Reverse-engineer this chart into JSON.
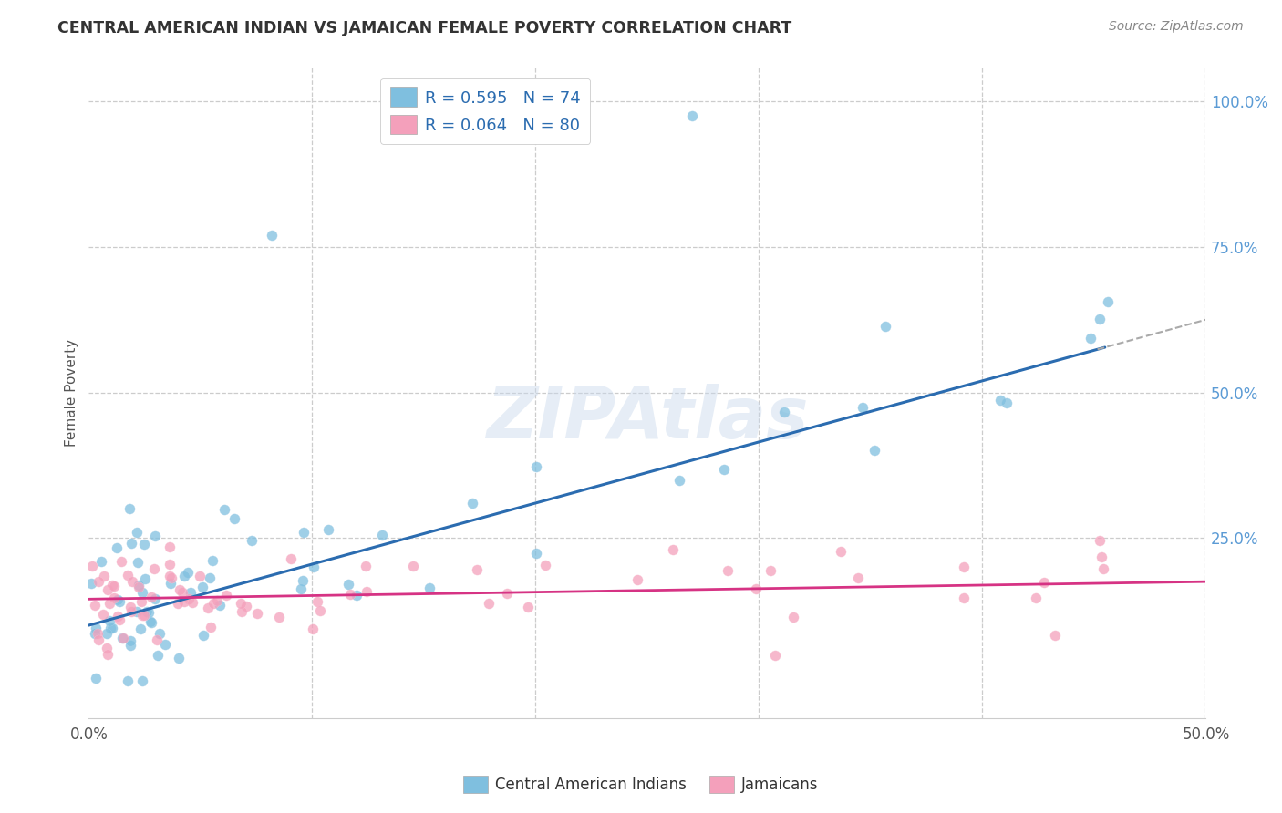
{
  "title": "CENTRAL AMERICAN INDIAN VS JAMAICAN FEMALE POVERTY CORRELATION CHART",
  "source": "Source: ZipAtlas.com",
  "ylabel": "Female Poverty",
  "yticks": [
    0.0,
    0.25,
    0.5,
    0.75,
    1.0
  ],
  "ytick_labels": [
    "",
    "25.0%",
    "50.0%",
    "75.0%",
    "100.0%"
  ],
  "xlim": [
    0.0,
    0.5
  ],
  "ylim": [
    -0.06,
    1.06
  ],
  "watermark": "ZIPAtlas",
  "legend_blue": "R = 0.595   N = 74",
  "legend_pink": "R = 0.064   N = 80",
  "blue_line_intercept": 0.1,
  "blue_line_slope": 1.05,
  "blue_line_solid_end": 0.455,
  "pink_line_intercept": 0.145,
  "pink_line_slope": 0.06,
  "blue_color": "#7fbfdf",
  "blue_color_fill": "#afd4eb",
  "pink_color": "#f4a0bb",
  "pink_color_fill": "#f9c8d8",
  "blue_line_color": "#2b6cb0",
  "pink_line_color": "#d63384",
  "extend_color": "#aaaaaa",
  "bg_color": "#ffffff",
  "grid_color": "#cccccc",
  "grid_style": "--",
  "xtick_positions": [
    0.0,
    0.5
  ],
  "xtick_labels": [
    "0.0%",
    "50.0%"
  ],
  "vertical_grid": [
    0.1,
    0.2,
    0.3,
    0.4
  ],
  "horizontal_grid": [
    0.25,
    0.5,
    0.75,
    1.0
  ]
}
